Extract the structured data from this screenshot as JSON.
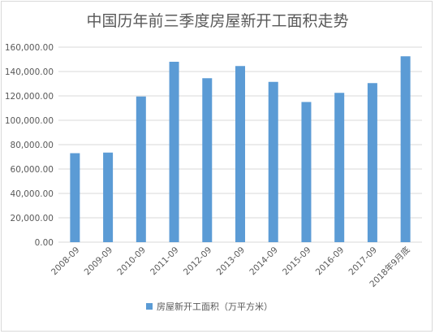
{
  "chart_data": {
    "type": "bar",
    "title": "中国历年前三季度房屋新开工面积走势",
    "categories": [
      "2008-09",
      "2009-09",
      "2010-09",
      "2011-09",
      "2012-09",
      "2013-09",
      "2014-09",
      "2015-09",
      "2016-09",
      "2017-09",
      "2018年9月底"
    ],
    "series": [
      {
        "name": "房屋新开工面积（万平方米）",
        "values": [
          73000,
          73500,
          119500,
          148000,
          134500,
          144500,
          131500,
          115000,
          122500,
          130500,
          152500
        ]
      }
    ],
    "yticks": [
      "0.00",
      "20,000.00",
      "40,000.00",
      "60,000.00",
      "80,000.00",
      "100,000.00",
      "120,000.00",
      "140,000.00",
      "160,000.00"
    ],
    "ylim": [
      0,
      160000
    ],
    "grid": true,
    "legend": "bottom",
    "colors": {
      "bar": "#5b9bd5",
      "grid": "#d9d9d9",
      "text": "#595959"
    }
  }
}
